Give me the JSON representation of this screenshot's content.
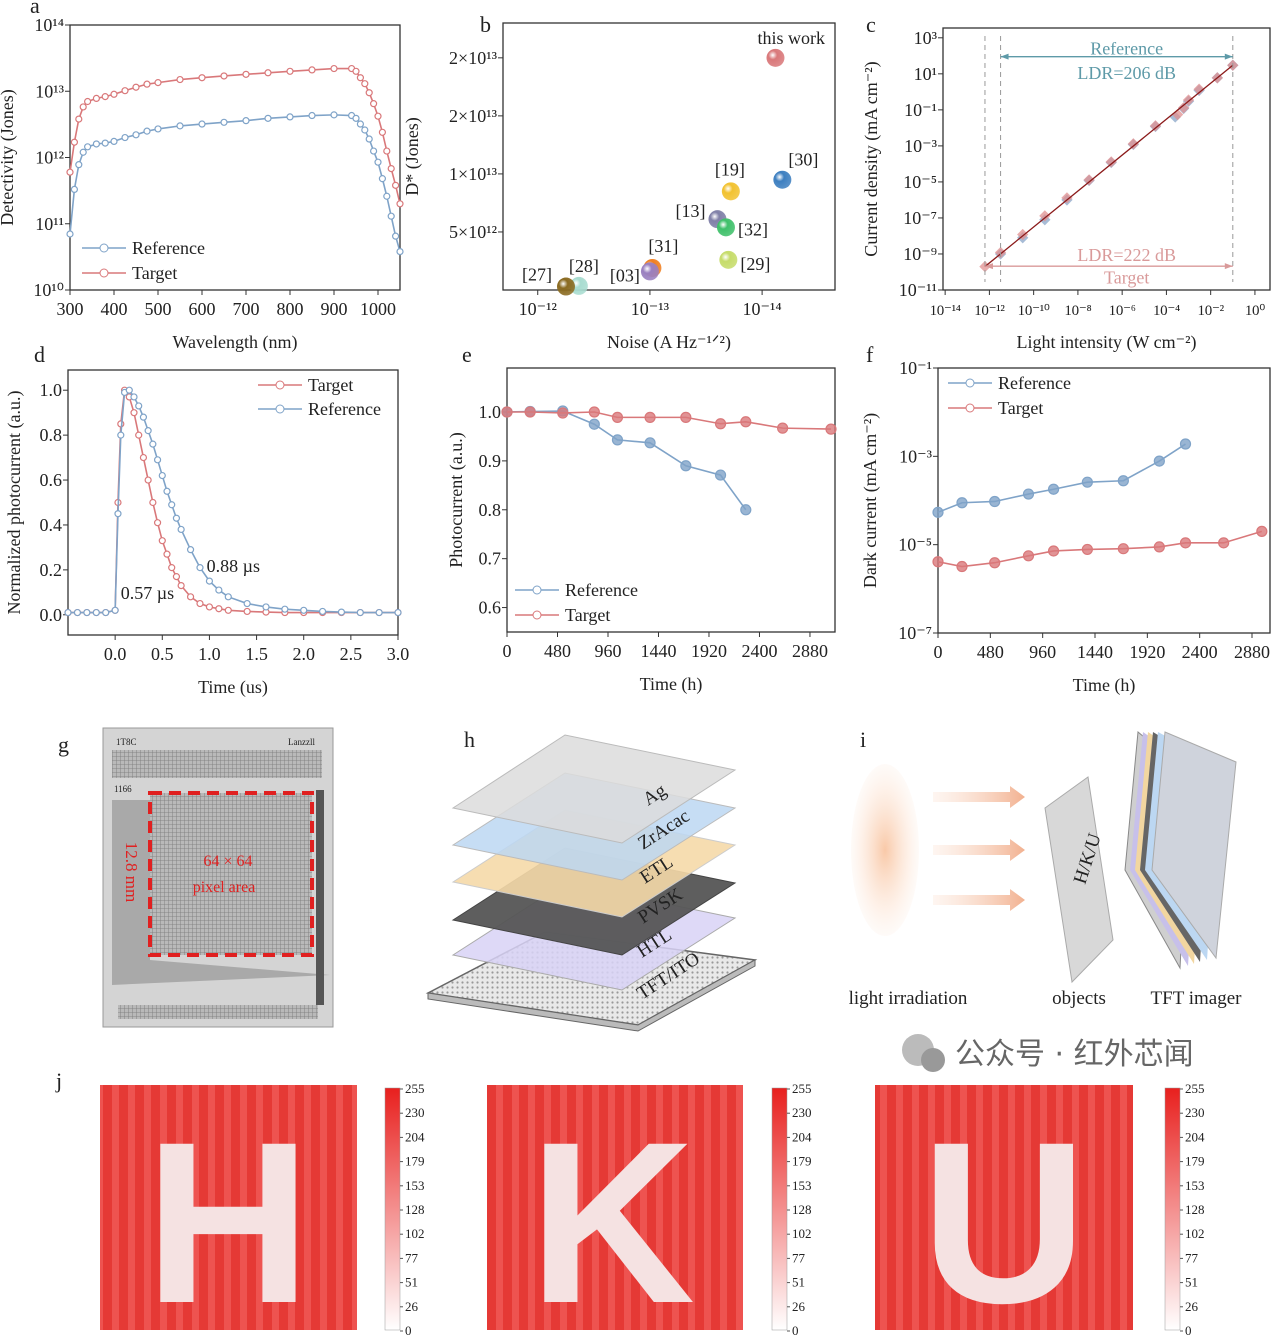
{
  "panel_letters": {
    "a": "a",
    "b": "b",
    "c": "c",
    "d": "d",
    "e": "e",
    "f": "f",
    "g": "g",
    "h": "h",
    "i": "i",
    "j": "j"
  },
  "colors": {
    "reference": "#7fa3c8",
    "target": "#d9787a",
    "ref_text": "#5e9aa8",
    "target_text": "#d99a9a",
    "heat_red": "#e53935"
  },
  "chart_data": [
    {
      "id": "a",
      "type": "line",
      "xlabel": "Wavelength (nm)",
      "ylabel": "Detectivity (Jones)",
      "xscale": "linear",
      "yscale": "log",
      "xlim": [
        300,
        1050
      ],
      "ylim": [
        10000000000.0,
        100000000000000.0
      ],
      "xticks": [
        300,
        400,
        500,
        600,
        700,
        800,
        900,
        1000
      ],
      "xtick_labels": [
        "300",
        "400",
        "500",
        "600",
        "700",
        "800",
        "900",
        "1000"
      ],
      "yticks": [
        10000000000.0,
        100000000000.0,
        1000000000000.0,
        10000000000000.0,
        100000000000000.0
      ],
      "ytick_labels": [
        "10¹⁰",
        "10¹¹",
        "10¹²",
        "10¹³",
        "10¹⁴"
      ],
      "legend": "bottom-left",
      "series": [
        {
          "name": "Reference",
          "color": "#7fa3c8",
          "x": [
            300,
            310,
            320,
            330,
            340,
            360,
            380,
            400,
            425,
            450,
            475,
            500,
            550,
            600,
            650,
            700,
            750,
            800,
            850,
            900,
            940,
            950,
            960,
            970,
            980,
            990,
            1000,
            1010,
            1020,
            1030,
            1040,
            1050
          ],
          "y": [
            70000000000.0,
            330000000000.0,
            780000000000.0,
            1200000000000.0,
            1450000000000.0,
            1600000000000.0,
            1650000000000.0,
            1750000000000.0,
            2000000000000.0,
            2200000000000.0,
            2500000000000.0,
            2700000000000.0,
            3000000000000.0,
            3200000000000.0,
            3400000000000.0,
            3600000000000.0,
            3900000000000.0,
            4100000000000.0,
            4300000000000.0,
            4400000000000.0,
            4300000000000.0,
            3900000000000.0,
            3200000000000.0,
            2600000000000.0,
            1900000000000.0,
            1250000000000.0,
            850000000000.0,
            480000000000.0,
            260000000000.0,
            130000000000.0,
            65000000000.0,
            38000000000.0
          ]
        },
        {
          "name": "Target",
          "color": "#d9787a",
          "x": [
            300,
            310,
            320,
            330,
            340,
            360,
            380,
            400,
            425,
            450,
            475,
            500,
            550,
            600,
            650,
            700,
            750,
            800,
            850,
            900,
            940,
            950,
            960,
            970,
            980,
            990,
            1000,
            1010,
            1020,
            1030,
            1040,
            1050
          ],
          "y": [
            600000000000.0,
            1700000000000.0,
            3800000000000.0,
            5800000000000.0,
            7000000000000.0,
            7800000000000.0,
            8300000000000.0,
            9000000000000.0,
            10200000000000.0,
            11500000000000.0,
            12800000000000.0,
            13500000000000.0,
            15000000000000.0,
            16000000000000.0,
            17000000000000.0,
            18000000000000.0,
            19000000000000.0,
            20000000000000.0,
            21000000000000.0,
            22000000000000.0,
            22000000000000.0,
            20000000000000.0,
            16000000000000.0,
            13000000000000.0,
            9500000000000.0,
            6500000000000.0,
            4200000000000.0,
            2400000000000.0,
            1250000000000.0,
            680000000000.0,
            380000000000.0,
            200000000000.0
          ]
        }
      ]
    },
    {
      "id": "b",
      "type": "scatter",
      "xlabel": "Noise (A Hz⁻¹ᐟ²)",
      "ylabel": "D* (Jones)",
      "xscale": "log",
      "yscale": "linear",
      "xlim": [
        2.04e-12,
        2.24e-15
      ],
      "ylim": [
        0,
        23000000000000.0
      ],
      "xticks": [
        1e-12,
        1e-13,
        1e-14
      ],
      "xtick_labels": [
        "10⁻¹²",
        "10⁻¹³",
        "10⁻¹⁴"
      ],
      "yticks": [
        5000000000000.0,
        10000000000000.0,
        15000000000000.0,
        20000000000000.0
      ],
      "ytick_labels": [
        "5×10¹²",
        "1×10¹³",
        "2×10¹³",
        "2×10¹³"
      ],
      "points": [
        {
          "label": "this work",
          "x": 7.6e-15,
          "y": 20000000000000.0,
          "color": "#d9787a"
        },
        {
          "label": "[30]",
          "x": 6.6e-15,
          "y": 9500000000000.0,
          "color": "#3d7fc0"
        },
        {
          "label": "[19]",
          "x": 1.9e-14,
          "y": 8500000000000.0,
          "color": "#f2c230"
        },
        {
          "label": "[13]",
          "x": 2.5e-14,
          "y": 6100000000000.0,
          "color": "#8080a8"
        },
        {
          "label": "[32]",
          "x": 2.1e-14,
          "y": 5400000000000.0,
          "color": "#3fc06a"
        },
        {
          "label": "[29]",
          "x": 2e-14,
          "y": 2600000000000.0,
          "color": "#c6dc6a"
        },
        {
          "label": "[31]",
          "x": 9.5e-14,
          "y": 1900000000000.0,
          "color": "#f07f20"
        },
        {
          "label": "[03]",
          "x": 1e-13,
          "y": 1600000000000.0,
          "color": "#9a80c0"
        },
        {
          "label": "[28]",
          "x": 4.3e-13,
          "y": 350000000000.0,
          "color": "#a8dcd0"
        },
        {
          "label": "[27]",
          "x": 5.6e-13,
          "y": 300000000000.0,
          "color": "#8a6a20"
        }
      ]
    },
    {
      "id": "c",
      "type": "scatter",
      "xlabel": "Light intensity (W cm⁻²)",
      "ylabel": "Current density (mA cm⁻²)",
      "xscale": "log",
      "yscale": "log",
      "xlim": [
        8e-15,
        4.8
      ],
      "ylim": [
        1e-11,
        3500.0
      ],
      "xticks": [
        1e-14,
        1e-12,
        1e-10,
        1e-08,
        1e-06,
        0.0001,
        0.01,
        1
      ],
      "xtick_labels": [
        "10⁻¹⁴",
        "10⁻¹²",
        "10⁻¹⁰",
        "10⁻⁸",
        "10⁻⁶",
        "10⁻⁴",
        "10⁻²",
        "10⁰"
      ],
      "yticks": [
        1e-11,
        1e-09,
        1e-07,
        1e-05,
        0.001,
        0.1,
        10,
        1000
      ],
      "ytick_labels": [
        "10⁻¹¹",
        "10⁻⁹",
        "10⁻⁷",
        "10⁻⁵",
        "10⁻³",
        "10⁻¹",
        "10¹",
        "10³"
      ],
      "series": [
        {
          "name": "Reference",
          "color": "#8aa6c8",
          "x": [
            3.2e-12,
            3.2e-11,
            3.2e-10,
            3.2e-09,
            3.2e-08,
            3.2e-07,
            3.2e-06,
            3.2e-05,
            0.00025,
            0.0006,
            0.001,
            0.003,
            0.02,
            0.1
          ],
          "y": [
            1e-09,
            8e-09,
            8e-08,
            1e-06,
            1.2e-05,
            0.00012,
            0.0012,
            0.012,
            0.04,
            0.12,
            0.3,
            1.2,
            6,
            30
          ]
        },
        {
          "name": "Target",
          "color": "#e09090",
          "x": [
            6.3e-13,
            3.2e-12,
            3.2e-11,
            3.2e-10,
            3.2e-09,
            3.2e-08,
            3.2e-07,
            3.2e-06,
            3.2e-05,
            0.00032,
            0.0006,
            0.001,
            0.003,
            0.02,
            0.1
          ],
          "y": [
            2e-10,
            1.2e-09,
            1.2e-08,
            1.3e-07,
            1.3e-06,
            1.3e-05,
            0.00013,
            0.0013,
            0.013,
            0.055,
            0.13,
            0.35,
            1.4,
            6,
            30
          ]
        }
      ],
      "ranges": [
        {
          "name": "Reference",
          "xfrom": 3.2e-12,
          "xto": 0.1,
          "y": 90,
          "labels": [
            "Reference",
            "LDR=206 dB"
          ],
          "label_y": [
            250,
            11
          ]
        },
        {
          "name": "Target",
          "xfrom": 6.3e-13,
          "xto": 0.1,
          "y": 2.1e-10,
          "labels": [
            "LDR=222 dB",
            "Target"
          ],
          "label_y": [
            9e-10,
            5e-11
          ]
        }
      ],
      "label_x": 1.6e-06
    },
    {
      "id": "d",
      "type": "line",
      "xlabel": "Time (us)",
      "ylabel": "Normalized photocurrent (a.u.)",
      "xscale": "linear",
      "yscale": "linear",
      "xlim": [
        -0.5,
        3.0
      ],
      "ylim": [
        -0.09,
        1.09
      ],
      "xticks": [
        0,
        0.5,
        1,
        1.5,
        2,
        2.5,
        3
      ],
      "xtick_labels": [
        "0.0",
        "0.5",
        "1.0",
        "1.5",
        "2.0",
        "2.5",
        "3.0"
      ],
      "yticks": [
        0,
        0.2,
        0.4,
        0.6,
        0.8,
        1.0
      ],
      "ytick_labels": [
        "0.0",
        "0.2",
        "0.4",
        "0.6",
        "0.8",
        "1.0"
      ],
      "legend": "top-right",
      "series": [
        {
          "name": "Target",
          "color": "#d9787a",
          "x": [
            -0.5,
            -0.4,
            -0.3,
            -0.2,
            -0.1,
            0,
            0.03,
            0.06,
            0.1,
            0.15,
            0.2,
            0.25,
            0.3,
            0.35,
            0.4,
            0.45,
            0.5,
            0.55,
            0.6,
            0.65,
            0.7,
            0.8,
            0.9,
            1.0,
            1.1,
            1.2,
            1.4,
            1.6,
            1.8,
            2.0,
            2.2,
            2.4,
            2.6,
            2.8,
            3.0
          ],
          "y": [
            0.01,
            0.01,
            0.01,
            0.01,
            0.01,
            0.02,
            0.5,
            0.85,
            1.0,
            0.97,
            0.9,
            0.8,
            0.7,
            0.6,
            0.5,
            0.41,
            0.33,
            0.27,
            0.21,
            0.17,
            0.13,
            0.08,
            0.05,
            0.035,
            0.027,
            0.02,
            0.015,
            0.012,
            0.01,
            0.01,
            0.01,
            0.01,
            0.01,
            0.01,
            0.01
          ]
        },
        {
          "name": "Reference",
          "color": "#7fa3c8",
          "x": [
            -0.5,
            -0.4,
            -0.3,
            -0.2,
            -0.1,
            0,
            0.03,
            0.06,
            0.1,
            0.15,
            0.2,
            0.25,
            0.3,
            0.35,
            0.4,
            0.45,
            0.5,
            0.55,
            0.6,
            0.65,
            0.7,
            0.8,
            0.9,
            1.0,
            1.1,
            1.2,
            1.4,
            1.6,
            1.8,
            2.0,
            2.2,
            2.4,
            2.6,
            2.8,
            3.0
          ],
          "y": [
            0.01,
            0.01,
            0.01,
            0.01,
            0.01,
            0.02,
            0.45,
            0.8,
            0.99,
            1.0,
            0.97,
            0.93,
            0.88,
            0.82,
            0.76,
            0.69,
            0.62,
            0.55,
            0.49,
            0.43,
            0.38,
            0.29,
            0.21,
            0.15,
            0.11,
            0.08,
            0.05,
            0.035,
            0.025,
            0.02,
            0.015,
            0.012,
            0.01,
            0.01,
            0.01
          ]
        }
      ],
      "annotations": [
        {
          "text": "0.57 µs",
          "x": 0.06,
          "y": 0.07
        },
        {
          "text": "0.88 µs",
          "x": 0.97,
          "y": 0.19
        }
      ]
    },
    {
      "id": "e",
      "type": "line",
      "xlabel": "Time (h)",
      "ylabel": "Photocurrent (a.u.)",
      "xscale": "linear",
      "yscale": "linear",
      "xlim": [
        0,
        3118
      ],
      "ylim": [
        0.55,
        1.09
      ],
      "xticks": [
        0,
        480,
        960,
        1440,
        1920,
        2400,
        2880
      ],
      "xtick_labels": [
        "0",
        "480",
        "960",
        "1440",
        "1920",
        "2400",
        "2880"
      ],
      "yticks": [
        0.6,
        0.7,
        0.8,
        0.9,
        1.0
      ],
      "ytick_labels": [
        "0.6",
        "0.7",
        "0.8",
        "0.9",
        "1.0"
      ],
      "legend": "bottom-left",
      "series": [
        {
          "name": "Reference",
          "color": "#7fa3c8",
          "x": [
            0,
            220,
            530,
            830,
            1050,
            1360,
            1700,
            2030,
            2270
          ],
          "y": [
            1.0,
            1.001,
            1.002,
            0.975,
            0.943,
            0.937,
            0.89,
            0.871,
            0.8
          ]
        },
        {
          "name": "Target",
          "color": "#d9787a",
          "x": [
            0,
            220,
            530,
            830,
            1050,
            1360,
            1700,
            2030,
            2270,
            2620,
            3080
          ],
          "y": [
            1.0,
            1.0,
            0.998,
            1.0,
            0.989,
            0.989,
            0.989,
            0.976,
            0.98,
            0.967,
            0.965
          ]
        }
      ]
    },
    {
      "id": "f",
      "type": "line",
      "xlabel": "Time (h)",
      "ylabel": "Dark current (mA cm⁻²)",
      "xscale": "linear",
      "yscale": "log",
      "xlim": [
        0,
        3045
      ],
      "ylim": [
        1e-07,
        0.1
      ],
      "xticks": [
        0,
        480,
        960,
        1440,
        1920,
        2400,
        2880
      ],
      "xtick_labels": [
        "0",
        "480",
        "960",
        "1440",
        "1920",
        "2400",
        "2880"
      ],
      "yticks": [
        1e-07,
        1e-05,
        0.001,
        0.1
      ],
      "ytick_labels": [
        "10⁻⁷",
        "10⁻⁵",
        "10⁻³",
        "10⁻¹"
      ],
      "legend": "top-left",
      "series": [
        {
          "name": "Reference",
          "color": "#7fa3c8",
          "x": [
            0,
            220,
            520,
            830,
            1060,
            1370,
            1700,
            2030,
            2270
          ],
          "y": [
            5.4e-05,
            8.9e-05,
            9.5e-05,
            0.00014,
            0.00018,
            0.00026,
            0.00028,
            0.00078,
            0.0019
          ]
        },
        {
          "name": "Target",
          "color": "#d9787a",
          "x": [
            0,
            220,
            520,
            830,
            1060,
            1370,
            1700,
            2030,
            2270,
            2620,
            2970
          ],
          "y": [
            4.1e-06,
            3.2e-06,
            3.9e-06,
            5.6e-06,
            7.2e-06,
            7.8e-06,
            8.1e-06,
            8.9e-06,
            1.1e-05,
            1.1e-05,
            2e-05
          ]
        }
      ]
    }
  ],
  "panel_g": {
    "chip_label_top_left": "1T8C",
    "chip_label_top_right": "Lanzzll",
    "chip_label_side": "1166",
    "dimension": "12.8 mm",
    "pixel_count": "64 × 64",
    "pixel_area": "pixel area"
  },
  "panel_h": {
    "layers": [
      "Ag",
      "ZrAcac",
      "ETL",
      "PVSK",
      "HTL",
      "TFT/ITO"
    ]
  },
  "panel_i": {
    "object_text": "H/K/U",
    "labels": [
      "light irradiation",
      "objects",
      "TFT imager"
    ]
  },
  "panel_j": {
    "letters": [
      "H",
      "K",
      "U"
    ],
    "colorbar_ticks": [
      "255",
      "230",
      "204",
      "179",
      "153",
      "128",
      "102",
      "77",
      "51",
      "26",
      "0"
    ]
  },
  "watermark": {
    "text": "公众号 · 红外芯闻"
  }
}
